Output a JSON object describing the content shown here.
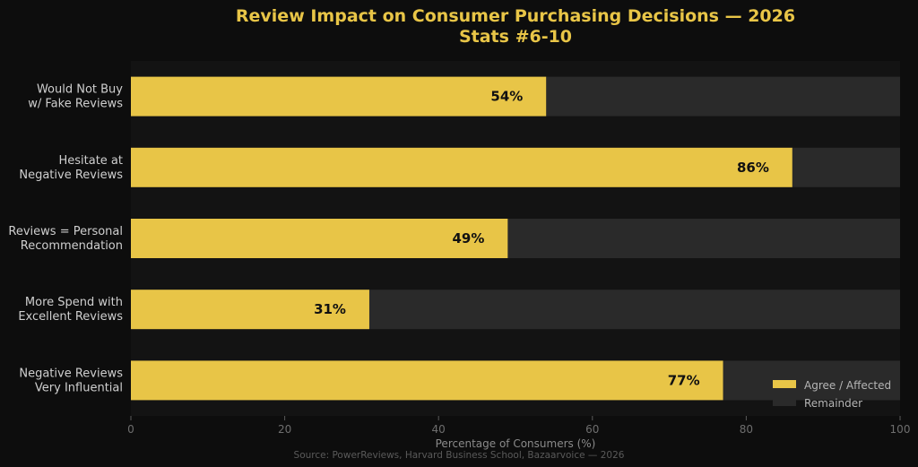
{
  "chart_data": {
    "type": "bar",
    "orientation": "horizontal",
    "stacked": true,
    "title": "Review Impact on Consumer Purchasing Decisions — 2026",
    "subtitle": "Stats #6-10",
    "categories": [
      [
        "Would Not Buy",
        "w/ Fake Reviews"
      ],
      [
        "Hesitate at",
        "Negative Reviews"
      ],
      [
        "Reviews = Personal",
        "Recommendation"
      ],
      [
        "More Spend with",
        "Excellent Reviews"
      ],
      [
        "Negative Reviews",
        "Very Influential"
      ]
    ],
    "series": [
      {
        "name": "Agree / Affected",
        "values": [
          54,
          86,
          49,
          31,
          77
        ],
        "labels": [
          "54%",
          "86%",
          "49%",
          "31%",
          "77%"
        ]
      },
      {
        "name": "Remainder",
        "values": [
          46,
          14,
          51,
          69,
          23
        ]
      }
    ],
    "xlabel": "Percentage of Consumers (%)",
    "xlim": [
      0,
      100
    ],
    "xticks": [
      "0",
      "20",
      "40",
      "60",
      "80",
      "100"
    ],
    "legend_position": "bottom-right",
    "grid": false,
    "source": "Source: PowerReviews, Harvard Business School, Bazaarvoice — 2026",
    "colors": {
      "background": "#0d0d0d",
      "plot_background": "#131313",
      "agree": "#e8c547",
      "remainder": "#2a2a2a",
      "title": "#e8c547"
    }
  }
}
